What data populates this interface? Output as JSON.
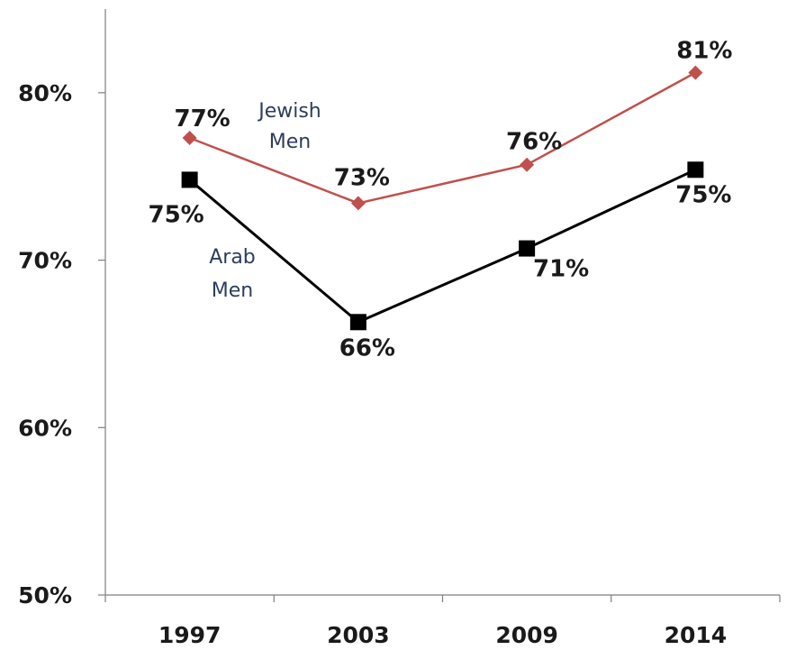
{
  "chart_data": {
    "type": "line",
    "categories": [
      "1997",
      "2003",
      "2009",
      "2014"
    ],
    "ylim": [
      50,
      85
    ],
    "y_ticks": [
      {
        "value": 50,
        "label": "50%"
      },
      {
        "value": 60,
        "label": "60%"
      },
      {
        "value": 70,
        "label": "70%"
      },
      {
        "value": 80,
        "label": "80%"
      }
    ],
    "grid": false,
    "series": [
      {
        "name_lines": [
          "Jewish",
          "Men"
        ],
        "color": "#c0504d",
        "marker": "diamond",
        "values": [
          77.3,
          73.4,
          75.7,
          81.2
        ],
        "labels": [
          "77%",
          "73%",
          "76%",
          "81%"
        ]
      },
      {
        "name_lines": [
          "Arab",
          "Men"
        ],
        "color": "#000000",
        "marker": "square",
        "values": [
          74.8,
          66.3,
          70.7,
          75.4
        ],
        "labels": [
          "75%",
          "66%",
          "71%",
          "75%"
        ]
      }
    ]
  }
}
